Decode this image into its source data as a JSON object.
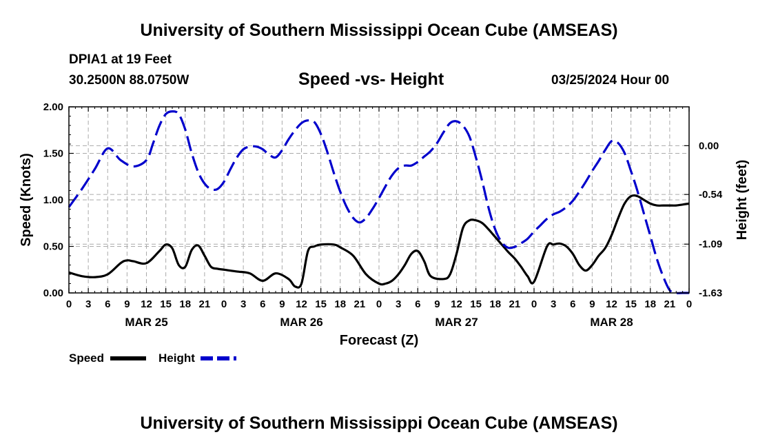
{
  "header": {
    "title": "University of Southern Mississippi Ocean Cube (AMSEAS)",
    "station": "DPIA1 at 19 Feet",
    "coords": "30.2500N   88.0750W",
    "subtitle": "Speed -vs- Height",
    "datetime": "03/25/2024 Hour 00"
  },
  "footer": {
    "title": "University of Southern Mississippi Ocean Cube (AMSEAS)"
  },
  "legend": {
    "speed_label": "Speed",
    "height_label": "Height"
  },
  "colors": {
    "speed": "#000000",
    "height": "#0000cc",
    "grid": "#aaaaaa"
  },
  "chart_data": {
    "type": "line",
    "title": "Speed -vs- Height",
    "xlabel": "Forecast (Z)",
    "ylabel": "Speed (Knots)",
    "y2label": "Height (feet)",
    "x_ticks": [
      "0",
      "3",
      "6",
      "9",
      "12",
      "15",
      "18",
      "21",
      "0",
      "3",
      "6",
      "9",
      "12",
      "15",
      "18",
      "21",
      "0",
      "3",
      "6",
      "9",
      "12",
      "15",
      "18",
      "21",
      "0",
      "3",
      "6",
      "9",
      "12",
      "15",
      "18",
      "21",
      "0"
    ],
    "day_labels": [
      {
        "label": "MAR 25",
        "hour": 12
      },
      {
        "label": "MAR 26",
        "hour": 36
      },
      {
        "label": "MAR 27",
        "hour": 60
      },
      {
        "label": "MAR 28",
        "hour": 84
      }
    ],
    "xlim": [
      0,
      96
    ],
    "ylim": [
      0,
      2.0
    ],
    "y_ticks": [
      "0.00",
      "0.50",
      "1.00",
      "1.50",
      "2.00"
    ],
    "y2lim": [
      -1.63,
      0.43
    ],
    "y2_ticks": [
      "0.00",
      "-0.54",
      "-1.09",
      "-1.63"
    ],
    "grid": true,
    "series": [
      {
        "name": "Speed",
        "axis": "left",
        "x": [
          0,
          2,
          4,
          6,
          8,
          9,
          10,
          12,
          14,
          15,
          16,
          17,
          18,
          19,
          20,
          21,
          22,
          23,
          24,
          26,
          28,
          30,
          32,
          34,
          35,
          36,
          37,
          38,
          39,
          41,
          42,
          44,
          46,
          48,
          49,
          50,
          51,
          52,
          53,
          54,
          55,
          56,
          58,
          59,
          60,
          61,
          62,
          63,
          64,
          65,
          66,
          67,
          68,
          69,
          70,
          71,
          72,
          74,
          75,
          76,
          77,
          78,
          79,
          80,
          81,
          82,
          83,
          84,
          85,
          86,
          87,
          88,
          89,
          90,
          91,
          92,
          93,
          94,
          95,
          96
        ],
        "values": [
          0.22,
          0.18,
          0.17,
          0.2,
          0.32,
          0.35,
          0.34,
          0.32,
          0.45,
          0.52,
          0.48,
          0.3,
          0.28,
          0.46,
          0.51,
          0.4,
          0.28,
          0.26,
          0.25,
          0.23,
          0.21,
          0.13,
          0.21,
          0.15,
          0.07,
          0.1,
          0.45,
          0.5,
          0.52,
          0.52,
          0.49,
          0.4,
          0.2,
          0.1,
          0.1,
          0.13,
          0.2,
          0.3,
          0.42,
          0.45,
          0.34,
          0.18,
          0.15,
          0.2,
          0.42,
          0.7,
          0.78,
          0.78,
          0.75,
          0.68,
          0.6,
          0.52,
          0.44,
          0.37,
          0.28,
          0.18,
          0.12,
          0.5,
          0.52,
          0.53,
          0.5,
          0.42,
          0.3,
          0.24,
          0.3,
          0.4,
          0.48,
          0.62,
          0.8,
          0.96,
          1.04,
          1.04,
          1.0,
          0.96,
          0.94,
          0.94,
          0.94,
          0.94,
          0.95,
          0.96
        ]
      },
      {
        "name": "Height",
        "axis": "right",
        "x": [
          0,
          2,
          4,
          6,
          8,
          10,
          12,
          13,
          14,
          15,
          16,
          17,
          18,
          19,
          20,
          21,
          22,
          23,
          24,
          25,
          26,
          27,
          28,
          29,
          30,
          31,
          32,
          33,
          34,
          35,
          36,
          37,
          38,
          39,
          40,
          41,
          42,
          43,
          44,
          45,
          46,
          47,
          48,
          49,
          50,
          51,
          52,
          53,
          54,
          55,
          56,
          57,
          58,
          59,
          60,
          61,
          62,
          63,
          64,
          65,
          66,
          67,
          68,
          69,
          70,
          71,
          72,
          73,
          74,
          75,
          76,
          77,
          78,
          79,
          80,
          81,
          82,
          83,
          84,
          85,
          86,
          87,
          88,
          89,
          90,
          91,
          92,
          93,
          94,
          95,
          96
        ],
        "values": [
          -0.68,
          -0.48,
          -0.26,
          -0.03,
          -0.16,
          -0.23,
          -0.16,
          0.02,
          0.22,
          0.35,
          0.38,
          0.35,
          0.18,
          -0.08,
          -0.29,
          -0.42,
          -0.48,
          -0.48,
          -0.4,
          -0.26,
          -0.13,
          -0.04,
          -0.01,
          -0.01,
          -0.04,
          -0.1,
          -0.13,
          -0.05,
          0.07,
          0.17,
          0.25,
          0.28,
          0.26,
          0.13,
          -0.07,
          -0.3,
          -0.51,
          -0.68,
          -0.8,
          -0.85,
          -0.8,
          -0.7,
          -0.58,
          -0.45,
          -0.33,
          -0.25,
          -0.22,
          -0.22,
          -0.18,
          -0.12,
          -0.06,
          0.03,
          0.15,
          0.25,
          0.27,
          0.22,
          0.1,
          -0.13,
          -0.4,
          -0.7,
          -0.93,
          -1.07,
          -1.13,
          -1.12,
          -1.08,
          -1.03,
          -0.95,
          -0.88,
          -0.81,
          -0.76,
          -0.73,
          -0.68,
          -0.61,
          -0.51,
          -0.4,
          -0.28,
          -0.17,
          -0.05,
          0.05,
          0.03,
          -0.08,
          -0.28,
          -0.5,
          -0.75,
          -1.0,
          -1.25,
          -1.45,
          -1.6,
          -1.63,
          -1.63,
          -1.63
        ]
      }
    ]
  }
}
